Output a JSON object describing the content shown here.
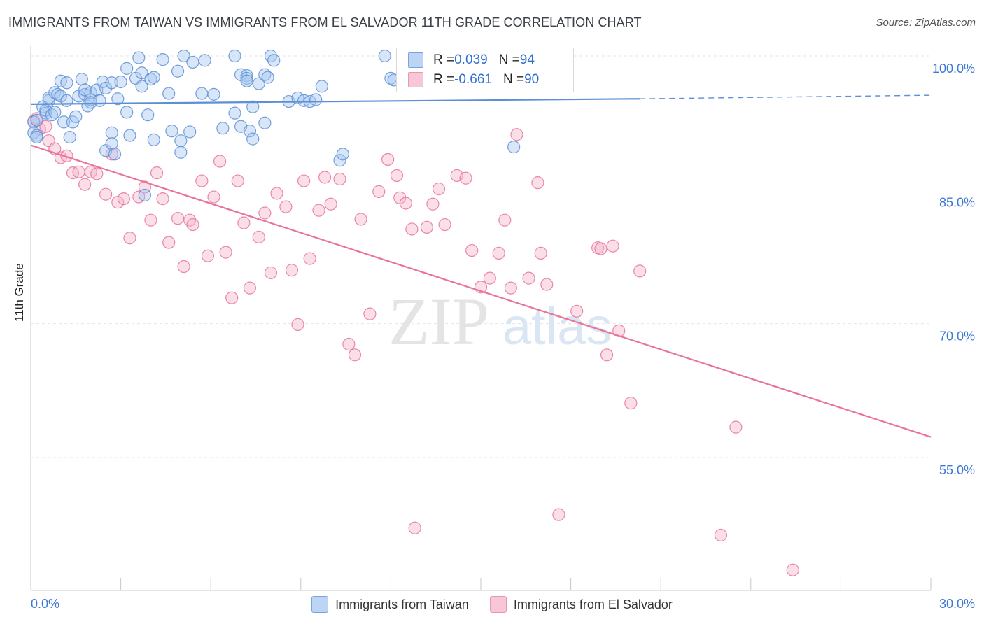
{
  "title": "IMMIGRANTS FROM TAIWAN VS IMMIGRANTS FROM EL SALVADOR 11TH GRADE CORRELATION CHART",
  "source": "Source: ZipAtlas.com",
  "watermark": {
    "zip": "ZIP",
    "atlas": "atlas"
  },
  "correlation_legend": [
    {
      "r_label": "R = ",
      "r_value": "0.039",
      "n_label": "N = ",
      "n_value": "94",
      "color": "#5b8fd6"
    },
    {
      "r_label": "R = ",
      "r_value": "-0.661",
      "n_label": "N = ",
      "n_value": "90",
      "color": "#e8739b"
    }
  ],
  "chart_data": {
    "type": "scatter",
    "title": "IMMIGRANTS FROM TAIWAN VS IMMIGRANTS FROM EL SALVADOR 11TH GRADE CORRELATION CHART",
    "xlabel": "",
    "ylabel": "11th Grade",
    "xlim": [
      0,
      30
    ],
    "ylim": [
      40,
      102
    ],
    "x_ticks": [
      "0.0%",
      "30.0%"
    ],
    "y_ticks": [
      {
        "value": 55,
        "label": "55.0%"
      },
      {
        "value": 70,
        "label": "70.0%"
      },
      {
        "value": 85,
        "label": "85.0%"
      },
      {
        "value": 100,
        "label": "100.0%"
      }
    ],
    "grid": true,
    "legend_position": "bottom",
    "series": [
      {
        "name": "Immigrants from Taiwan",
        "color": "#5b8fd6",
        "fill": "#a9c8f0",
        "trend": {
          "x": [
            0,
            20.3,
            30
          ],
          "y": [
            94.6,
            95.2,
            95.6
          ],
          "solid_until": 20.3
        },
        "points": [
          [
            0.1,
            92.6
          ],
          [
            0.1,
            91.4
          ],
          [
            0.2,
            92.8
          ],
          [
            0.2,
            91.1
          ],
          [
            0.2,
            90.9
          ],
          [
            0.4,
            94.3
          ],
          [
            0.5,
            93.6
          ],
          [
            0.5,
            93.9
          ],
          [
            0.6,
            95.0
          ],
          [
            0.6,
            95.3
          ],
          [
            0.7,
            93.4
          ],
          [
            0.8,
            93.7
          ],
          [
            0.8,
            95.9
          ],
          [
            0.9,
            95.7
          ],
          [
            1.0,
            97.2
          ],
          [
            1.0,
            95.5
          ],
          [
            1.1,
            92.6
          ],
          [
            1.2,
            95.0
          ],
          [
            1.2,
            97.0
          ],
          [
            1.3,
            90.9
          ],
          [
            1.4,
            92.6
          ],
          [
            1.5,
            93.2
          ],
          [
            1.6,
            95.5
          ],
          [
            1.7,
            97.4
          ],
          [
            1.8,
            95.7
          ],
          [
            1.8,
            96.2
          ],
          [
            1.9,
            94.4
          ],
          [
            2.0,
            95.1
          ],
          [
            2.0,
            95.9
          ],
          [
            2.0,
            94.8
          ],
          [
            2.2,
            96.2
          ],
          [
            2.3,
            95.0
          ],
          [
            2.4,
            97.1
          ],
          [
            2.5,
            89.4
          ],
          [
            2.5,
            96.4
          ],
          [
            2.7,
            90.2
          ],
          [
            2.7,
            91.4
          ],
          [
            2.7,
            97.0
          ],
          [
            2.8,
            89.0
          ],
          [
            2.9,
            95.2
          ],
          [
            3.0,
            97.1
          ],
          [
            3.2,
            98.6
          ],
          [
            3.2,
            93.7
          ],
          [
            3.3,
            91.1
          ],
          [
            3.5,
            97.5
          ],
          [
            3.6,
            99.8
          ],
          [
            3.7,
            96.6
          ],
          [
            3.7,
            98.1
          ],
          [
            3.8,
            84.4
          ],
          [
            3.9,
            93.4
          ],
          [
            4.0,
            97.4
          ],
          [
            4.1,
            97.6
          ],
          [
            4.1,
            90.6
          ],
          [
            4.4,
            99.6
          ],
          [
            4.6,
            95.8
          ],
          [
            4.9,
            98.3
          ],
          [
            5.0,
            89.2
          ],
          [
            5.0,
            90.5
          ],
          [
            5.1,
            100.0
          ],
          [
            5.3,
            91.5
          ],
          [
            5.4,
            99.3
          ],
          [
            5.7,
            95.8
          ],
          [
            5.8,
            99.5
          ],
          [
            6.1,
            95.7
          ],
          [
            6.4,
            91.9
          ],
          [
            6.8,
            93.6
          ],
          [
            6.8,
            100.0
          ],
          [
            7.0,
            97.9
          ],
          [
            7.0,
            92.1
          ],
          [
            7.2,
            97.8
          ],
          [
            7.3,
            91.6
          ],
          [
            7.4,
            94.3
          ],
          [
            7.4,
            90.7
          ],
          [
            7.6,
            96.9
          ],
          [
            7.8,
            92.5
          ],
          [
            8.0,
            100.0
          ],
          [
            7.8,
            97.9
          ],
          [
            7.9,
            97.6
          ],
          [
            8.1,
            99.5
          ],
          [
            7.2,
            97.5
          ],
          [
            7.2,
            97.2
          ],
          [
            8.6,
            94.9
          ],
          [
            8.9,
            95.3
          ],
          [
            9.1,
            95.0
          ],
          [
            9.3,
            94.9
          ],
          [
            9.5,
            95.1
          ],
          [
            9.7,
            96.6
          ],
          [
            10.3,
            88.3
          ],
          [
            10.4,
            89.0
          ],
          [
            11.8,
            100.0
          ],
          [
            12.0,
            97.5
          ],
          [
            16.1,
            89.8
          ],
          [
            12.1,
            97.3
          ],
          [
            4.7,
            91.6
          ]
        ]
      },
      {
        "name": "Immigrants from El Salvador",
        "color": "#e8739b",
        "fill": "#f5b8cc",
        "trend": {
          "x": [
            0,
            30
          ],
          "y": [
            90.0,
            57.3
          ],
          "solid_until": 30
        },
        "points": [
          [
            0.1,
            92.7
          ],
          [
            0.2,
            93.0
          ],
          [
            0.3,
            91.8
          ],
          [
            0.5,
            92.1
          ],
          [
            0.6,
            90.5
          ],
          [
            0.8,
            89.6
          ],
          [
            1.0,
            88.6
          ],
          [
            1.2,
            88.8
          ],
          [
            1.4,
            86.9
          ],
          [
            1.6,
            87.0
          ],
          [
            1.8,
            85.6
          ],
          [
            2.0,
            87.0
          ],
          [
            2.2,
            86.8
          ],
          [
            2.5,
            84.5
          ],
          [
            2.7,
            89.0
          ],
          [
            2.9,
            83.6
          ],
          [
            3.1,
            84.0
          ],
          [
            3.3,
            79.6
          ],
          [
            3.6,
            84.2
          ],
          [
            3.8,
            85.3
          ],
          [
            4.0,
            81.6
          ],
          [
            4.2,
            86.9
          ],
          [
            4.4,
            84.0
          ],
          [
            4.6,
            79.1
          ],
          [
            4.9,
            81.8
          ],
          [
            5.1,
            76.4
          ],
          [
            5.3,
            81.6
          ],
          [
            5.4,
            81.1
          ],
          [
            5.7,
            86.0
          ],
          [
            5.9,
            77.6
          ],
          [
            6.1,
            84.2
          ],
          [
            6.3,
            88.2
          ],
          [
            6.5,
            78.0
          ],
          [
            6.7,
            72.9
          ],
          [
            6.9,
            86.0
          ],
          [
            7.1,
            81.3
          ],
          [
            7.3,
            74.0
          ],
          [
            7.6,
            79.7
          ],
          [
            7.8,
            82.4
          ],
          [
            8.0,
            75.7
          ],
          [
            8.2,
            84.6
          ],
          [
            8.5,
            83.1
          ],
          [
            8.7,
            76.0
          ],
          [
            8.9,
            69.9
          ],
          [
            9.1,
            86.0
          ],
          [
            9.3,
            77.3
          ],
          [
            9.6,
            82.7
          ],
          [
            9.8,
            86.4
          ],
          [
            10.0,
            83.4
          ],
          [
            10.3,
            86.2
          ],
          [
            10.6,
            67.7
          ],
          [
            10.8,
            66.5
          ],
          [
            11.0,
            81.7
          ],
          [
            11.3,
            71.1
          ],
          [
            11.6,
            84.8
          ],
          [
            11.9,
            88.4
          ],
          [
            12.2,
            86.6
          ],
          [
            12.3,
            84.1
          ],
          [
            12.5,
            83.5
          ],
          [
            12.7,
            80.6
          ],
          [
            12.8,
            47.1
          ],
          [
            13.2,
            80.8
          ],
          [
            13.4,
            83.4
          ],
          [
            13.6,
            85.1
          ],
          [
            13.8,
            81.1
          ],
          [
            14.2,
            86.6
          ],
          [
            14.5,
            86.3
          ],
          [
            14.7,
            78.2
          ],
          [
            15.0,
            74.1
          ],
          [
            15.3,
            75.1
          ],
          [
            15.6,
            77.9
          ],
          [
            15.8,
            81.6
          ],
          [
            16.0,
            74.0
          ],
          [
            16.2,
            91.2
          ],
          [
            16.6,
            75.1
          ],
          [
            16.9,
            85.8
          ],
          [
            17.0,
            77.9
          ],
          [
            17.2,
            74.4
          ],
          [
            17.6,
            48.6
          ],
          [
            18.2,
            71.4
          ],
          [
            18.9,
            78.5
          ],
          [
            19.0,
            78.4
          ],
          [
            19.2,
            66.5
          ],
          [
            19.4,
            78.7
          ],
          [
            19.6,
            69.2
          ],
          [
            20.0,
            61.1
          ],
          [
            20.3,
            75.9
          ],
          [
            23.0,
            46.3
          ],
          [
            23.5,
            58.4
          ],
          [
            25.4,
            42.4
          ]
        ]
      }
    ]
  }
}
